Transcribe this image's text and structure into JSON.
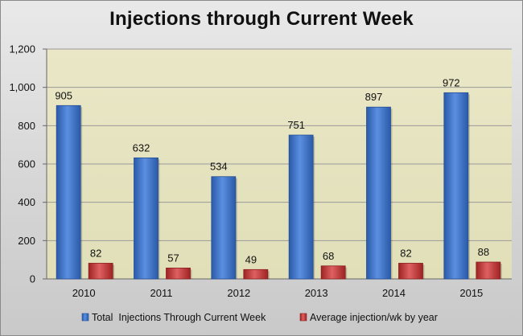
{
  "chart_data": {
    "type": "bar",
    "title": "Injections through Current Week",
    "categories": [
      "2010",
      "2011",
      "2012",
      "2013",
      "2014",
      "2015"
    ],
    "series": [
      {
        "name": "Total  Injections Through Current Week",
        "values": [
          905,
          632,
          534,
          751,
          897,
          972
        ],
        "color": "#3f74c8"
      },
      {
        "name": "Average injection/wk by year",
        "values": [
          82,
          57,
          49,
          68,
          82,
          88
        ],
        "color": "#c23c3c"
      }
    ],
    "y_ticks": [
      "0",
      "200",
      "400",
      "600",
      "800",
      "1,000",
      "1,200"
    ],
    "ylim": [
      0,
      1200
    ],
    "grid": true,
    "legend_position": "bottom",
    "plot_background": "#e6e4c0",
    "xlabel": "",
    "ylabel": ""
  }
}
